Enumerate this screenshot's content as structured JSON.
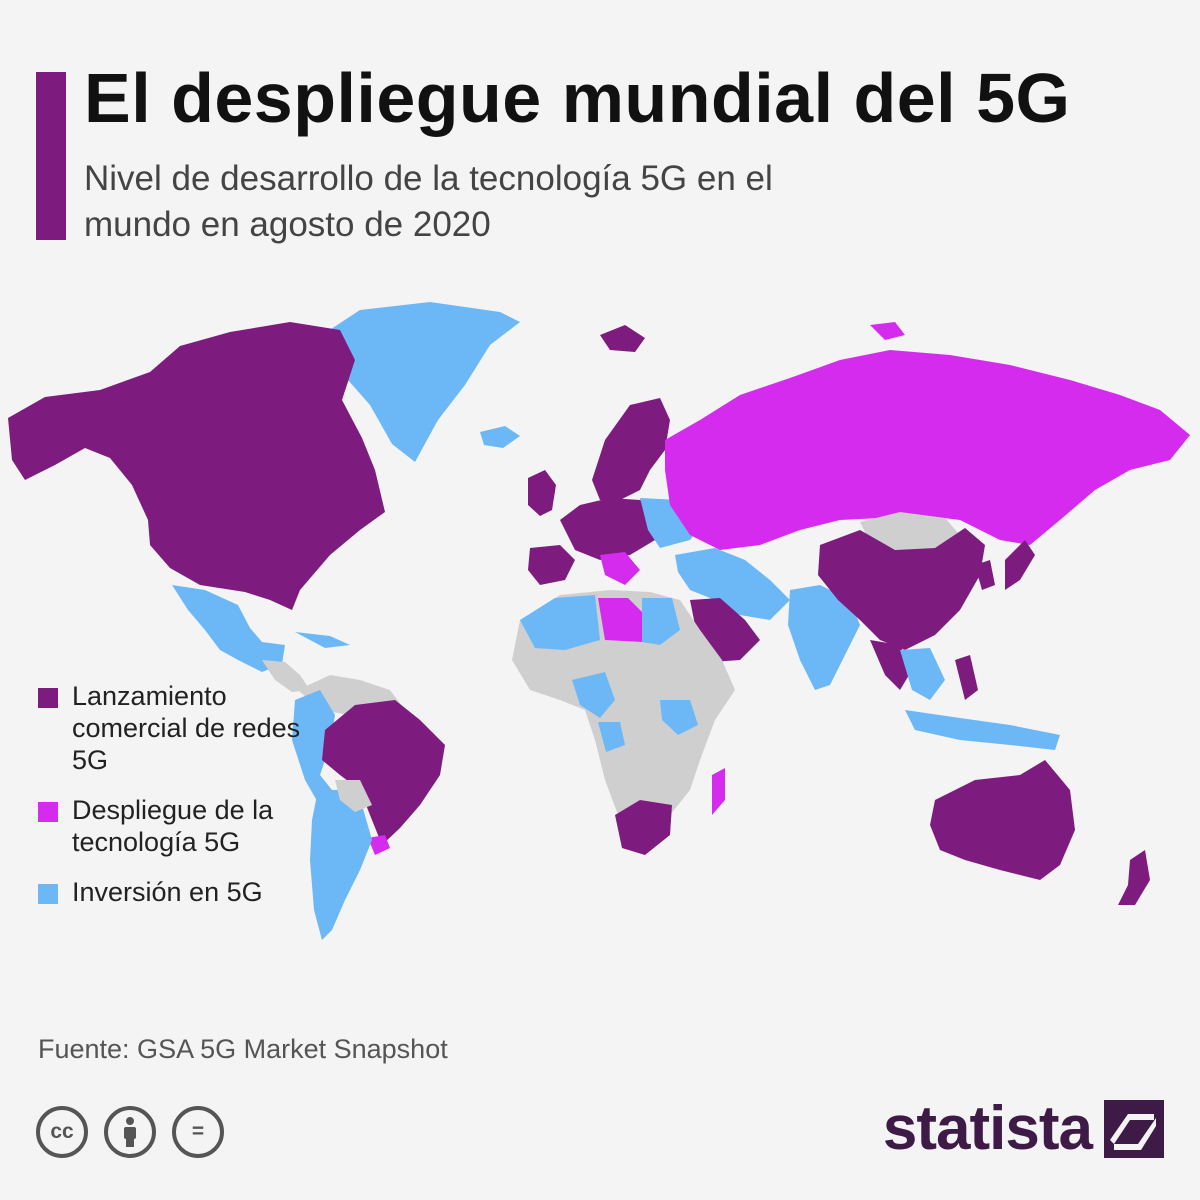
{
  "header": {
    "title": "El despliegue mundial del 5G",
    "subtitle": "Nivel de desarrollo de la tecnología 5G en el mundo en agosto de 2020",
    "accent_color": "#7e1b7f"
  },
  "map": {
    "type": "world choropleth",
    "colors": {
      "commercial": "#7e1b7f",
      "deployment": "#d42bef",
      "investment": "#6cb8f6",
      "none": "#cfcfcf",
      "background": "#f4f4f4"
    }
  },
  "legend": {
    "items": [
      {
        "label": "Lanzamiento comercial de redes 5G",
        "color": "#7e1b7f"
      },
      {
        "label": "Despliegue de la tecnología 5G",
        "color": "#d42bef"
      },
      {
        "label": "Inversión en 5G",
        "color": "#6cb8f6"
      }
    ]
  },
  "footer": {
    "source": "Fuente: GSA 5G Market Snapshot",
    "license_icons": [
      "cc-icon",
      "attribution-icon",
      "no-derivatives-icon"
    ],
    "cc_text": "cc",
    "nd_text": "=",
    "brand": "statista",
    "brand_color": "#3e1a47"
  }
}
